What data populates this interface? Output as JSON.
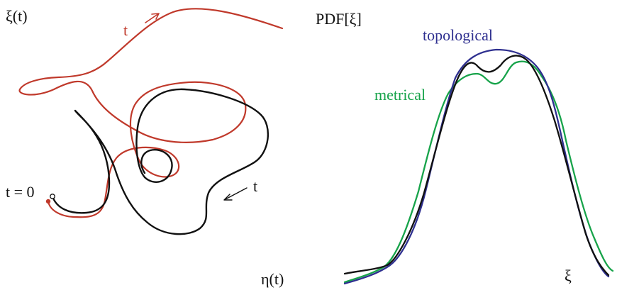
{
  "left_panel": {
    "y_label": "ξ(t)",
    "x_label": "η(t)",
    "start_label": "t = 0",
    "red_t_label": "t",
    "black_t_label": "t"
  },
  "right_panel": {
    "title": "PDF[ξ]",
    "x_label": "ξ",
    "topological_label": "topological",
    "metrical_label": "metrical"
  },
  "colors": {
    "black_curve": "#111111",
    "red_curve": "#c0392b",
    "blue_curve": "#2e2f8f",
    "green_curve": "#17a34a"
  }
}
